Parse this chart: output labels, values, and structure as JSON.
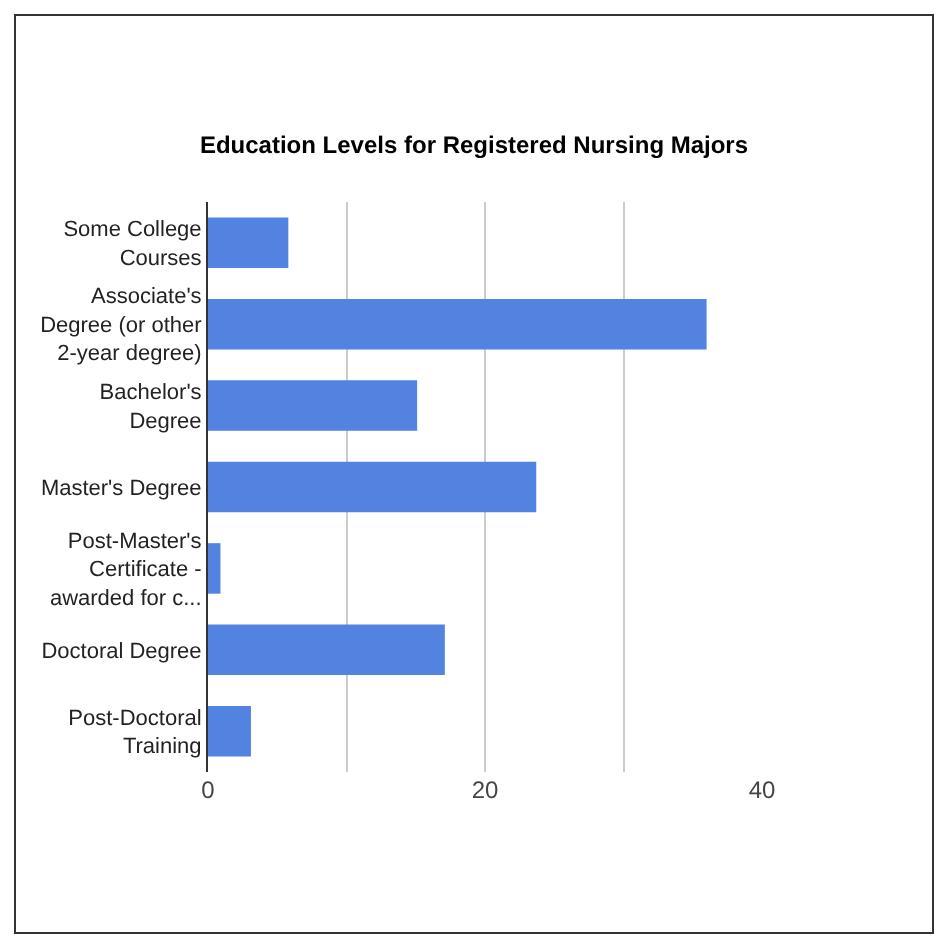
{
  "chart_data": {
    "type": "bar",
    "orientation": "horizontal",
    "title": "Education Levels for Registered Nursing Majors",
    "categories": [
      "Some College Courses",
      "Associate's Degree (or other 2-year degree)",
      "Bachelor's Degree",
      "Master's Degree",
      "Post-Master's Certificate - awarded for c...",
      "Doctoral Degree",
      "Post-Doctoral Training"
    ],
    "values": [
      5.8,
      36.0,
      15.1,
      23.7,
      0.9,
      17.1,
      3.1
    ],
    "color": "#5283e0",
    "xlim": [
      0,
      40
    ],
    "xticks": [
      0,
      {
        "value": 10,
        "label": null
      },
      20,
      {
        "value": 30,
        "label": null
      },
      40
    ],
    "grid": "x"
  }
}
